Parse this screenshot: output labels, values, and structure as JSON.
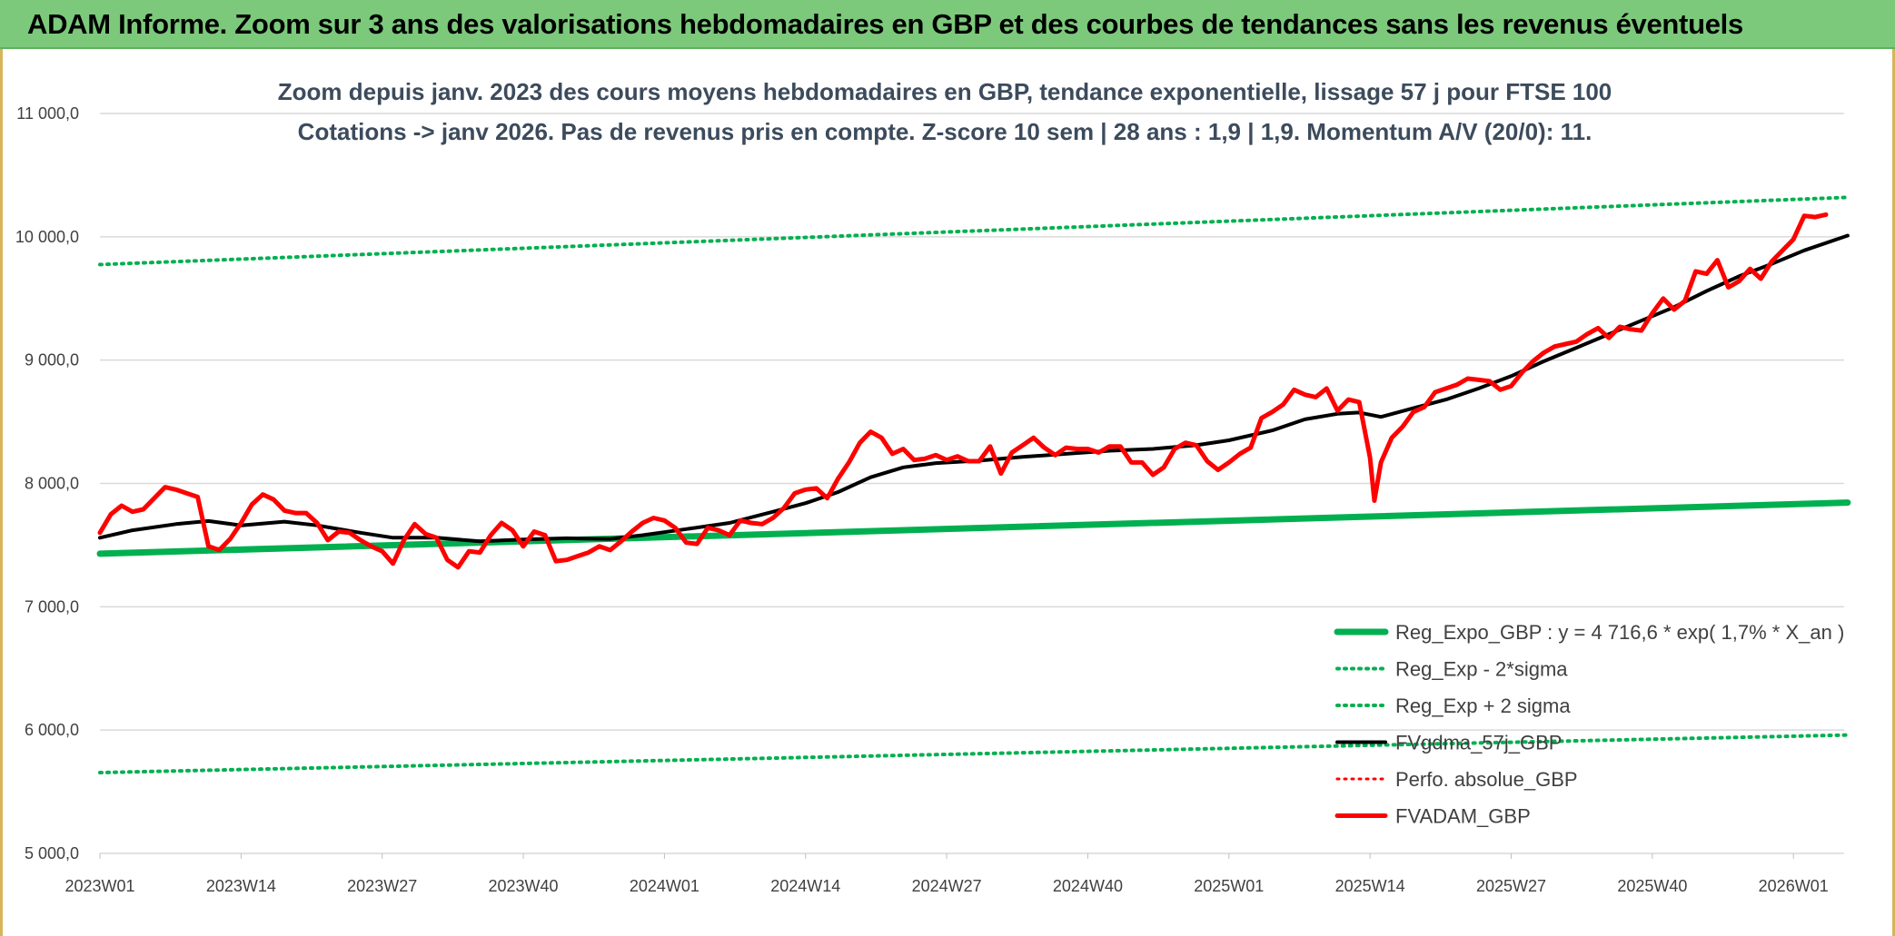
{
  "header": {
    "title": "ADAM Informe. Zoom sur 3 ans des valorisations hebdomadaires en GBP et des courbes de tendances sans les revenus éventuels"
  },
  "chart_data": {
    "type": "line",
    "title_lines": [
      "Zoom depuis janv. 2023 des cours moyens hebdomadaires en GBP, tendance exponentielle, lissage 57 j pour FTSE 100",
      "Cotations -> janv 2026. Pas de revenus pris en compte. Z-score 10 sem | 28 ans : 1,9 | 1,9. Momentum A/V (20/0): 11."
    ],
    "xlabel": "",
    "ylabel": "",
    "ylim": [
      5000,
      11000
    ],
    "yticks": [
      {
        "value": 5000,
        "label": "5 000,0"
      },
      {
        "value": 6000,
        "label": "6 000,0"
      },
      {
        "value": 7000,
        "label": "7 000,0"
      },
      {
        "value": 8000,
        "label": "8 000,0"
      },
      {
        "value": 9000,
        "label": "9 000,0"
      },
      {
        "value": 10000,
        "label": "10 000,0"
      },
      {
        "value": 11000,
        "label": "11 000,0"
      }
    ],
    "xlim": [
      0,
      162
    ],
    "xticks": [
      {
        "index": 0,
        "label": "2023W01"
      },
      {
        "index": 13,
        "label": "2023W14"
      },
      {
        "index": 26,
        "label": "2023W27"
      },
      {
        "index": 39,
        "label": "2023W40"
      },
      {
        "index": 52,
        "label": "2024W01"
      },
      {
        "index": 65,
        "label": "2024W14"
      },
      {
        "index": 78,
        "label": "2024W27"
      },
      {
        "index": 91,
        "label": "2024W40"
      },
      {
        "index": 104,
        "label": "2025W01"
      },
      {
        "index": 117,
        "label": "2025W14"
      },
      {
        "index": 130,
        "label": "2025W27"
      },
      {
        "index": 143,
        "label": "2025W40"
      },
      {
        "index": 156,
        "label": "2026W01"
      }
    ],
    "grid": true,
    "legend_position": "bottom-right",
    "series": [
      {
        "name": "Reg_Expo_GBP : y = 4 716,6 * exp( 1,7% *  X_an )",
        "color": "#00b050",
        "style": "solid",
        "width": 7,
        "points": [
          [
            0,
            7430
          ],
          [
            161,
            7845
          ]
        ]
      },
      {
        "name": "Reg_Exp - 2*sigma",
        "color": "#00b050",
        "style": "dotted",
        "width": 4,
        "points": [
          [
            0,
            5655
          ],
          [
            161,
            5960
          ]
        ]
      },
      {
        "name": "Reg_Exp + 2 sigma",
        "color": "#00b050",
        "style": "dotted",
        "width": 4,
        "points": [
          [
            0,
            9775
          ],
          [
            161,
            10320
          ]
        ]
      },
      {
        "name": "FVgdma_57j_GBP",
        "color": "#000000",
        "style": "solid",
        "width": 4,
        "points": [
          [
            0,
            7560
          ],
          [
            3,
            7620
          ],
          [
            7,
            7670
          ],
          [
            10,
            7695
          ],
          [
            13,
            7660
          ],
          [
            17,
            7690
          ],
          [
            20,
            7660
          ],
          [
            24,
            7600
          ],
          [
            27,
            7560
          ],
          [
            31,
            7560
          ],
          [
            35,
            7530
          ],
          [
            39,
            7545
          ],
          [
            43,
            7555
          ],
          [
            47,
            7550
          ],
          [
            50,
            7580
          ],
          [
            54,
            7630
          ],
          [
            58,
            7680
          ],
          [
            62,
            7770
          ],
          [
            65,
            7840
          ],
          [
            68,
            7930
          ],
          [
            71,
            8050
          ],
          [
            74,
            8130
          ],
          [
            77,
            8165
          ],
          [
            81,
            8185
          ],
          [
            85,
            8215
          ],
          [
            89,
            8240
          ],
          [
            93,
            8265
          ],
          [
            97,
            8280
          ],
          [
            101,
            8310
          ],
          [
            104,
            8350
          ],
          [
            108,
            8430
          ],
          [
            111,
            8520
          ],
          [
            114,
            8565
          ],
          [
            116,
            8575
          ],
          [
            118,
            8540
          ],
          [
            121,
            8610
          ],
          [
            124,
            8680
          ],
          [
            127,
            8770
          ],
          [
            130,
            8870
          ],
          [
            133,
            8990
          ],
          [
            136,
            9100
          ],
          [
            139,
            9210
          ],
          [
            142,
            9320
          ],
          [
            145,
            9430
          ],
          [
            148,
            9560
          ],
          [
            151,
            9680
          ],
          [
            154,
            9780
          ],
          [
            157,
            9890
          ],
          [
            161,
            10010
          ]
        ]
      },
      {
        "name": "Perfo. absolue_GBP",
        "color": "#ff0000",
        "style": "dotted",
        "width": 3,
        "points": []
      },
      {
        "name": "FVADAM_GBP",
        "color": "#ff0000",
        "style": "solid",
        "width": 5,
        "points": [
          [
            0,
            7600
          ],
          [
            1,
            7750
          ],
          [
            2,
            7820
          ],
          [
            3,
            7770
          ],
          [
            4,
            7790
          ],
          [
            5,
            7880
          ],
          [
            6,
            7970
          ],
          [
            7,
            7950
          ],
          [
            8,
            7920
          ],
          [
            9,
            7890
          ],
          [
            10,
            7490
          ],
          [
            11,
            7460
          ],
          [
            12,
            7550
          ],
          [
            13,
            7680
          ],
          [
            14,
            7830
          ],
          [
            15,
            7910
          ],
          [
            16,
            7870
          ],
          [
            17,
            7780
          ],
          [
            18,
            7760
          ],
          [
            19,
            7760
          ],
          [
            20,
            7680
          ],
          [
            21,
            7540
          ],
          [
            22,
            7610
          ],
          [
            23,
            7600
          ],
          [
            24,
            7540
          ],
          [
            25,
            7490
          ],
          [
            26,
            7450
          ],
          [
            27,
            7350
          ],
          [
            28,
            7540
          ],
          [
            29,
            7670
          ],
          [
            30,
            7590
          ],
          [
            31,
            7560
          ],
          [
            32,
            7380
          ],
          [
            33,
            7320
          ],
          [
            34,
            7450
          ],
          [
            35,
            7440
          ],
          [
            36,
            7580
          ],
          [
            37,
            7680
          ],
          [
            38,
            7620
          ],
          [
            39,
            7490
          ],
          [
            40,
            7610
          ],
          [
            41,
            7580
          ],
          [
            42,
            7370
          ],
          [
            43,
            7380
          ],
          [
            44,
            7410
          ],
          [
            45,
            7440
          ],
          [
            46,
            7490
          ],
          [
            47,
            7460
          ],
          [
            48,
            7530
          ],
          [
            49,
            7610
          ],
          [
            50,
            7680
          ],
          [
            51,
            7720
          ],
          [
            52,
            7700
          ],
          [
            53,
            7640
          ],
          [
            54,
            7520
          ],
          [
            55,
            7510
          ],
          [
            56,
            7640
          ],
          [
            57,
            7620
          ],
          [
            58,
            7580
          ],
          [
            59,
            7700
          ],
          [
            60,
            7680
          ],
          [
            61,
            7670
          ],
          [
            62,
            7720
          ],
          [
            63,
            7800
          ],
          [
            64,
            7920
          ],
          [
            65,
            7950
          ],
          [
            66,
            7960
          ],
          [
            67,
            7880
          ],
          [
            68,
            8040
          ],
          [
            69,
            8170
          ],
          [
            70,
            8330
          ],
          [
            71,
            8420
          ],
          [
            72,
            8370
          ],
          [
            73,
            8240
          ],
          [
            74,
            8280
          ],
          [
            75,
            8190
          ],
          [
            76,
            8200
          ],
          [
            77,
            8230
          ],
          [
            78,
            8190
          ],
          [
            79,
            8220
          ],
          [
            80,
            8180
          ],
          [
            81,
            8180
          ],
          [
            82,
            8300
          ],
          [
            83,
            8080
          ],
          [
            84,
            8250
          ],
          [
            85,
            8310
          ],
          [
            86,
            8370
          ],
          [
            87,
            8290
          ],
          [
            88,
            8230
          ],
          [
            89,
            8290
          ],
          [
            90,
            8280
          ],
          [
            91,
            8280
          ],
          [
            92,
            8250
          ],
          [
            93,
            8300
          ],
          [
            94,
            8300
          ],
          [
            95,
            8170
          ],
          [
            96,
            8170
          ],
          [
            97,
            8070
          ],
          [
            98,
            8130
          ],
          [
            99,
            8280
          ],
          [
            100,
            8330
          ],
          [
            101,
            8310
          ],
          [
            102,
            8180
          ],
          [
            103,
            8110
          ],
          [
            104,
            8170
          ],
          [
            105,
            8240
          ],
          [
            106,
            8290
          ],
          [
            107,
            8530
          ],
          [
            108,
            8580
          ],
          [
            109,
            8640
          ],
          [
            110,
            8760
          ],
          [
            111,
            8720
          ],
          [
            112,
            8700
          ],
          [
            113,
            8770
          ],
          [
            114,
            8590
          ],
          [
            115,
            8680
          ],
          [
            116,
            8660
          ],
          [
            117,
            8210
          ],
          [
            117.4,
            7860
          ],
          [
            118,
            8170
          ],
          [
            119,
            8370
          ],
          [
            120,
            8460
          ],
          [
            121,
            8580
          ],
          [
            122,
            8620
          ],
          [
            123,
            8740
          ],
          [
            124,
            8770
          ],
          [
            125,
            8800
          ],
          [
            126,
            8850
          ],
          [
            127,
            8840
          ],
          [
            128,
            8830
          ],
          [
            129,
            8760
          ],
          [
            130,
            8790
          ],
          [
            131,
            8900
          ],
          [
            132,
            8990
          ],
          [
            133,
            9060
          ],
          [
            134,
            9110
          ],
          [
            135,
            9130
          ],
          [
            136,
            9150
          ],
          [
            137,
            9210
          ],
          [
            138,
            9260
          ],
          [
            139,
            9180
          ],
          [
            140,
            9270
          ],
          [
            141,
            9250
          ],
          [
            142,
            9240
          ],
          [
            143,
            9380
          ],
          [
            144,
            9500
          ],
          [
            145,
            9410
          ],
          [
            146,
            9480
          ],
          [
            147,
            9720
          ],
          [
            148,
            9700
          ],
          [
            149,
            9810
          ],
          [
            150,
            9590
          ],
          [
            151,
            9640
          ],
          [
            152,
            9740
          ],
          [
            153,
            9660
          ],
          [
            154,
            9800
          ],
          [
            155,
            9890
          ],
          [
            156,
            9980
          ],
          [
            157,
            10170
          ],
          [
            158,
            10160
          ],
          [
            159,
            10180
          ]
        ]
      }
    ]
  }
}
